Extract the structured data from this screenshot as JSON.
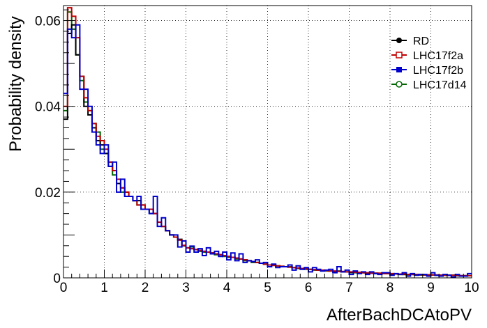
{
  "chart_data": {
    "type": "line",
    "title": "",
    "xlabel": "AfterBachDCAtoPV",
    "ylabel": "Probability density",
    "xlim": [
      0,
      10
    ],
    "ylim": [
      0,
      0.0635
    ],
    "x_ticks": [
      "0",
      "1",
      "2",
      "3",
      "4",
      "5",
      "6",
      "7",
      "8",
      "9",
      "10"
    ],
    "y_ticks": [
      {
        "value": 0,
        "label": "0"
      },
      {
        "value": 0.02,
        "label": "0.02"
      },
      {
        "value": 0.04,
        "label": "0.04"
      },
      {
        "value": 0.06,
        "label": "0.06"
      }
    ],
    "grid": true,
    "legend_position": "top-right",
    "bin_width": 0.1,
    "x": [
      0.05,
      0.15,
      0.25,
      0.35,
      0.45,
      0.55,
      0.65,
      0.75,
      0.85,
      0.95,
      1.05,
      1.15,
      1.25,
      1.35,
      1.45,
      1.55,
      1.65,
      1.75,
      1.85,
      1.95,
      2.05,
      2.15,
      2.25,
      2.35,
      2.45,
      2.55,
      2.65,
      2.75,
      2.85,
      2.95,
      3.05,
      3.15,
      3.25,
      3.35,
      3.45,
      3.55,
      3.65,
      3.75,
      3.85,
      3.95,
      4.05,
      4.15,
      4.25,
      4.35,
      4.45,
      4.55,
      4.65,
      4.75,
      4.85,
      4.95,
      5.05,
      5.15,
      5.25,
      5.35,
      5.45,
      5.55,
      5.65,
      5.75,
      5.85,
      5.95,
      6.05,
      6.15,
      6.25,
      6.35,
      6.45,
      6.55,
      6.65,
      6.75,
      6.85,
      6.95,
      7.05,
      7.15,
      7.25,
      7.35,
      7.45,
      7.55,
      7.65,
      7.75,
      7.85,
      7.95,
      8.05,
      8.15,
      8.25,
      8.35,
      8.45,
      8.55,
      8.65,
      8.75,
      8.85,
      8.95,
      9.05,
      9.15,
      9.25,
      9.35,
      9.45,
      9.55,
      9.65,
      9.75,
      9.85,
      9.95
    ],
    "series": [
      {
        "name": "RD",
        "color": "#000000",
        "marker": "filled-circle",
        "values": [
          0.037,
          0.057,
          0.059,
          0.052,
          0.047,
          0.04,
          0.038,
          0.035,
          0.032,
          0.031,
          0.029,
          0.027,
          0.025,
          0.022,
          0.021,
          0.02,
          0.019,
          0.018,
          0.018,
          0.017,
          0.016,
          0.016,
          0.015,
          0.013,
          0.012,
          0.011,
          0.01,
          0.0095,
          0.009,
          0.0075,
          0.007,
          0.0068,
          0.0066,
          0.0064,
          0.0062,
          0.006,
          0.0058,
          0.0056,
          0.0054,
          0.0052,
          0.005,
          0.0048,
          0.0046,
          0.0044,
          0.0042,
          0.004,
          0.0038,
          0.0036,
          0.0034,
          0.0032,
          0.003,
          0.0029,
          0.0028,
          0.0027,
          0.0026,
          0.0025,
          0.0024,
          0.0023,
          0.0022,
          0.0021,
          0.002,
          0.0019,
          0.0018,
          0.0017,
          0.0017,
          0.0016,
          0.0015,
          0.0015,
          0.0014,
          0.0014,
          0.0013,
          0.0013,
          0.0012,
          0.0012,
          0.0011,
          0.0011,
          0.0011,
          0.001,
          0.001,
          0.001,
          0.0009,
          0.0009,
          0.0009,
          0.0008,
          0.0008,
          0.0008,
          0.0008,
          0.0007,
          0.0007,
          0.0007,
          0.0007,
          0.0006,
          0.0006,
          0.0006,
          0.0006,
          0.0006,
          0.0005,
          0.0005,
          0.0005,
          0.0005
        ]
      },
      {
        "name": "LHC17f2a",
        "color": "#c00000",
        "marker": "open-square",
        "values": [
          0.04,
          0.063,
          0.061,
          0.056,
          0.047,
          0.042,
          0.039,
          0.036,
          0.033,
          0.032,
          0.03,
          0.027,
          0.025,
          0.023,
          0.021,
          0.02,
          0.019,
          0.018,
          0.017,
          0.017,
          0.016,
          0.016,
          0.015,
          0.013,
          0.012,
          0.011,
          0.01,
          0.0095,
          0.0088,
          0.0076,
          0.007,
          0.0068,
          0.0066,
          0.0064,
          0.0062,
          0.006,
          0.0058,
          0.0056,
          0.0054,
          0.0052,
          0.005,
          0.0048,
          0.0046,
          0.0044,
          0.0042,
          0.004,
          0.0038,
          0.0036,
          0.0034,
          0.0032,
          0.003,
          0.0029,
          0.0028,
          0.0027,
          0.0026,
          0.0025,
          0.0024,
          0.0023,
          0.0022,
          0.0021,
          0.002,
          0.0019,
          0.0018,
          0.0018,
          0.0017,
          0.0016,
          0.0016,
          0.0015,
          0.0015,
          0.0014,
          0.0014,
          0.0013,
          0.0013,
          0.0012,
          0.0012,
          0.0011,
          0.0011,
          0.0011,
          0.001,
          0.001,
          0.001,
          0.0009,
          0.0009,
          0.0009,
          0.0008,
          0.0008,
          0.0008,
          0.0008,
          0.0007,
          0.0007,
          0.0007,
          0.0007,
          0.0006,
          0.0006,
          0.0006,
          0.0006,
          0.0006,
          0.0005,
          0.0005,
          0.0005
        ]
      },
      {
        "name": "LHC17f2b",
        "color": "#0000cc",
        "marker": "filled-square",
        "values": [
          0.043,
          0.058,
          0.056,
          0.059,
          0.044,
          0.044,
          0.04,
          0.034,
          0.031,
          0.029,
          0.031,
          0.026,
          0.027,
          0.02,
          0.023,
          0.019,
          0.019,
          0.018,
          0.019,
          0.016,
          0.016,
          0.015,
          0.019,
          0.012,
          0.014,
          0.011,
          0.01,
          0.01,
          0.0072,
          0.0086,
          0.006,
          0.0074,
          0.006,
          0.0068,
          0.0052,
          0.007,
          0.0056,
          0.0062,
          0.005,
          0.006,
          0.0042,
          0.0058,
          0.004,
          0.0056,
          0.0036,
          0.004,
          0.0038,
          0.0042,
          0.0034,
          0.0036,
          0.0026,
          0.0032,
          0.0024,
          0.0026,
          0.0026,
          0.003,
          0.0018,
          0.0028,
          0.002,
          0.0024,
          0.0014,
          0.0024,
          0.002,
          0.0016,
          0.0018,
          0.002,
          0.0012,
          0.0026,
          0.0014,
          0.0018,
          0.0008,
          0.0016,
          0.001,
          0.0014,
          0.0008,
          0.0014,
          0.001,
          0.0008,
          0.0012,
          0.0012,
          0.0006,
          0.001,
          0.0008,
          0.0012,
          0.0004,
          0.001,
          0.0006,
          0.0008,
          0.0008,
          0.0004,
          0.0012,
          0.0006,
          0.0004,
          0.0008,
          0.0006,
          0.0002,
          0.0008,
          0.0004,
          0.0004,
          0.001
        ]
      },
      {
        "name": "LHC17d14",
        "color": "#006400",
        "marker": "open-circle",
        "values": [
          0.039,
          0.062,
          0.058,
          0.052,
          0.046,
          0.041,
          0.039,
          0.036,
          0.034,
          0.03,
          0.029,
          0.026,
          0.024,
          0.022,
          0.02,
          0.019,
          0.019,
          0.018,
          0.017,
          0.016,
          0.016,
          0.015,
          0.015,
          0.013,
          0.012,
          0.011,
          0.01,
          0.0095,
          0.0088,
          0.0075,
          0.007,
          0.0072,
          0.0066,
          0.0062,
          0.006,
          0.006,
          0.0058,
          0.0054,
          0.0054,
          0.005,
          0.0048,
          0.0048,
          0.0044,
          0.0044,
          0.004,
          0.004,
          0.0036,
          0.0036,
          0.0034,
          0.0032,
          0.003,
          0.003,
          0.0028,
          0.0026,
          0.0026,
          0.0026,
          0.0024,
          0.0022,
          0.0022,
          0.002,
          0.002,
          0.0018,
          0.0018,
          0.0016,
          0.0016,
          0.0016,
          0.0014,
          0.0016,
          0.0014,
          0.0014,
          0.0012,
          0.0012,
          0.0012,
          0.0012,
          0.0011,
          0.0011,
          0.001,
          0.001,
          0.001,
          0.001,
          0.0009,
          0.0009,
          0.0008,
          0.0008,
          0.0008,
          0.0008,
          0.0008,
          0.0007,
          0.0007,
          0.0007,
          0.0007,
          0.0006,
          0.0006,
          0.0006,
          0.0006,
          0.0006,
          0.0005,
          0.0005,
          0.0005,
          0.0005
        ]
      }
    ]
  }
}
